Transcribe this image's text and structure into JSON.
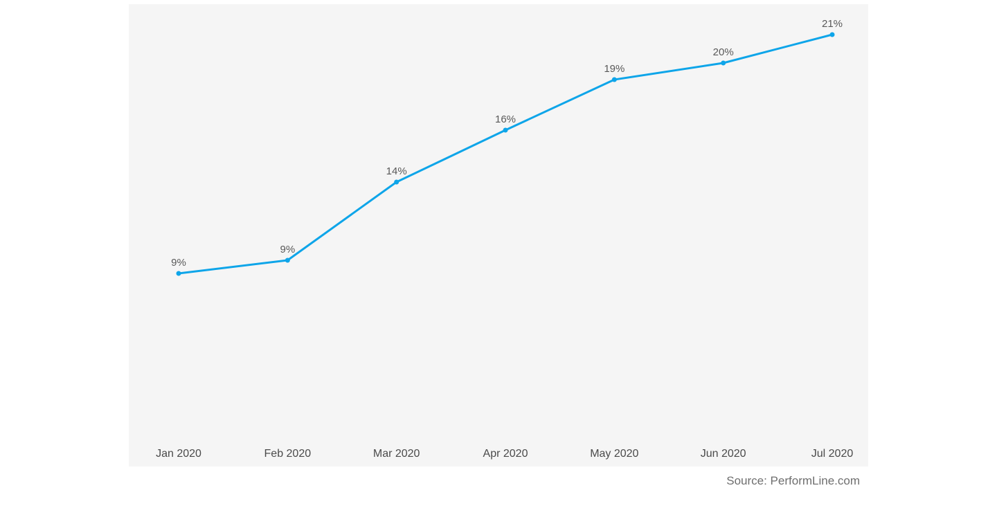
{
  "colors": {
    "line": "#0ea5e9",
    "panel_background": "#f5f5f5",
    "label_text": "#595959"
  },
  "chart_data": {
    "type": "line",
    "categories": [
      "Jan 2020",
      "Feb 2020",
      "Mar 2020",
      "Apr 2020",
      "May 2020",
      "Jun 2020",
      "Jul 2020"
    ],
    "series": [
      {
        "values": [
          9,
          9,
          14,
          16,
          19,
          20,
          21
        ],
        "labels": [
          "9%",
          "9%",
          "14%",
          "16%",
          "19%",
          "20%",
          "21%"
        ]
      }
    ],
    "title": "",
    "xlabel": "",
    "ylabel": "",
    "grid": false,
    "axis_visible": false
  },
  "footer": {
    "source": "Source: PerformLine.com"
  }
}
